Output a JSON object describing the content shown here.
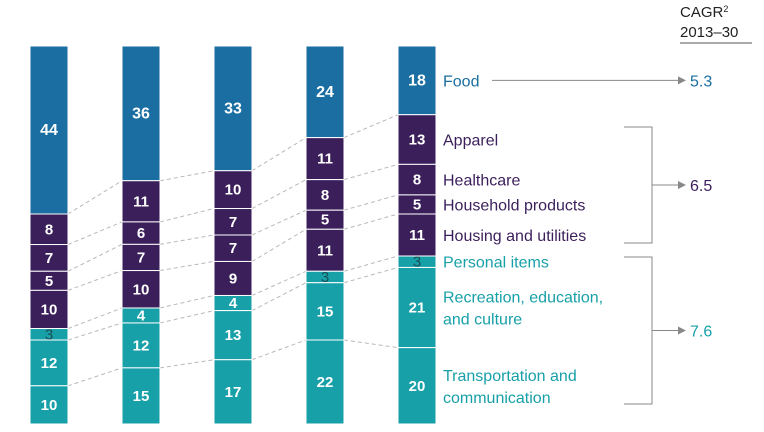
{
  "chart_data": {
    "type": "bar",
    "stacked": true,
    "bars": [
      [
        44,
        8,
        7,
        5,
        10,
        3,
        12,
        10
      ],
      [
        36,
        11,
        6,
        7,
        10,
        4,
        12,
        15
      ],
      [
        33,
        10,
        7,
        7,
        9,
        4,
        13,
        17
      ],
      [
        24,
        11,
        8,
        5,
        11,
        3,
        15,
        22
      ],
      [
        18,
        13,
        8,
        5,
        11,
        3,
        21,
        20
      ]
    ],
    "categories": [
      "Food",
      "Apparel",
      "Healthcare",
      "Household products",
      "Housing and utilities",
      "Personal items",
      "Recreation, education,\nand culture",
      "Transportation and\ncommunication"
    ],
    "group_colors": [
      "#1a6ea1",
      "#3b1f5b",
      "#18a0a8"
    ],
    "segment_groups": [
      0,
      1,
      1,
      1,
      1,
      2,
      2,
      2
    ],
    "category_colors": [
      "#1a6ea1",
      "#3b1f5b",
      "#3b1f5b",
      "#3b1f5b",
      "#3b1f5b",
      "#18a0a8",
      "#18a0a8",
      "#18a0a8"
    ],
    "cagr_header": [
      "CAGR",
      "2",
      "2013–30"
    ],
    "cagr_groups": [
      {
        "value": "5.3",
        "color": "#1a6ea1"
      },
      {
        "value": "6.5",
        "color": "#3b1f5b"
      },
      {
        "value": "7.6",
        "color": "#18a0a8"
      }
    ]
  }
}
